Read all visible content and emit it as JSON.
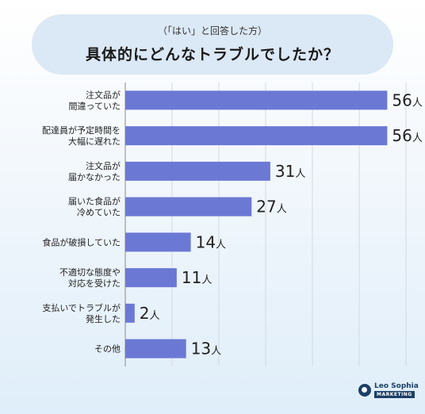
{
  "header": {
    "subtitle": "（「はい」と回答した方）",
    "title": "具体的にどんなトラブルでしたか？"
  },
  "chart_data": {
    "type": "bar",
    "orientation": "horizontal",
    "categories": [
      [
        "注文品が",
        "間違っていた"
      ],
      [
        "配達員が予定時間を",
        "大幅に遅れた"
      ],
      [
        "注文品が",
        "届かなかった"
      ],
      [
        "届いた食品が",
        "冷めていた"
      ],
      [
        "食品が破損していた"
      ],
      [
        "不適切な態度や",
        "対応を受けた"
      ],
      [
        "支払いでトラブルが",
        "発生した"
      ],
      [
        "その他"
      ]
    ],
    "values": [
      56,
      56,
      31,
      27,
      14,
      11,
      2,
      13
    ],
    "value_unit": "人",
    "xlim": [
      0,
      60
    ],
    "grid": true,
    "bar_color": "#6b79d4"
  },
  "logo": {
    "name": "Leo Sophia",
    "tag": "MARKETING"
  }
}
